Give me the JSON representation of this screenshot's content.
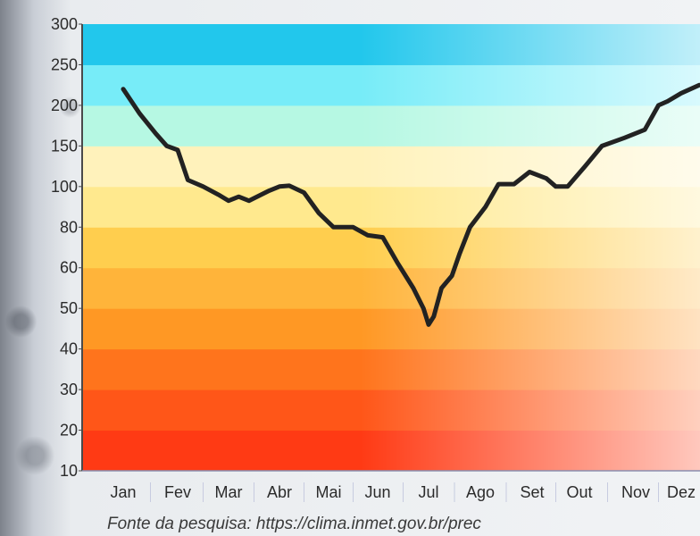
{
  "chart_data": {
    "type": "line",
    "title": "",
    "xlabel": "",
    "ylabel": "",
    "y_ticks": [
      10,
      20,
      30,
      40,
      50,
      60,
      80,
      100,
      150,
      200,
      250,
      300
    ],
    "categories": [
      "Jan",
      "Fev",
      "Mar",
      "Abr",
      "Mai",
      "Jun",
      "Jul",
      "Ago",
      "Set",
      "Out",
      "Nov",
      "Dez"
    ],
    "series": [
      {
        "name": "",
        "color": "#222222",
        "x": [
          0.0,
          0.3,
          0.6,
          0.8,
          1.0,
          1.2,
          1.5,
          1.8,
          2.0,
          2.2,
          2.4,
          2.8,
          3.0,
          3.2,
          3.5,
          3.8,
          4.1,
          4.5,
          4.8,
          5.1,
          5.4,
          5.7,
          5.9,
          6.0,
          6.1,
          6.25,
          6.45,
          6.6,
          6.8,
          7.1,
          7.35,
          7.65,
          7.95,
          8.3,
          8.5,
          8.75,
          9.1,
          9.4,
          9.8,
          10.2,
          10.5,
          10.7,
          11.0,
          11.4
        ],
        "values": [
          220,
          190,
          165,
          150,
          145,
          108,
          100,
          96,
          93,
          95,
          93,
          98,
          100,
          101,
          97,
          87,
          80,
          80,
          76,
          75,
          62,
          55,
          50,
          46,
          48,
          55,
          58,
          67,
          80,
          90,
          103,
          103,
          118,
          110,
          100,
          100,
          125,
          150,
          160,
          170,
          200,
          205,
          215,
          225
        ]
      }
    ]
  },
  "months_display": [
    "Jan",
    "Fev",
    "Mar",
    "Abr",
    "Mai",
    "Jun",
    "Jul",
    "Ago",
    "Set",
    "Out",
    "Nov",
    "Dez"
  ],
  "source_text": "Fonte da pesquisa: https://clima.inmet.gov.br/prec",
  "colors": {
    "bands": [
      "#ff3a14",
      "#ff5618",
      "#ff741c",
      "#ff9824",
      "#ffb43a",
      "#ffce4e",
      "#ffe98e",
      "#fff2bb",
      "#b6f8e3",
      "#77ecf8",
      "#22c7ec",
      "#108fd6"
    ],
    "line": "#222222",
    "axis": "#4a4a4a"
  }
}
